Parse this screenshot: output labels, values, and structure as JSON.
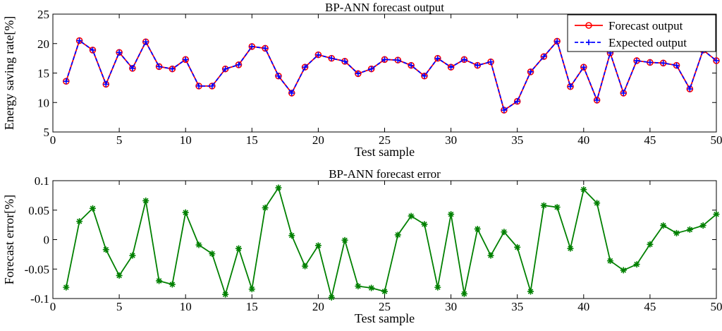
{
  "chart_data": [
    {
      "type": "line",
      "title": "BP-ANN forecast output",
      "xlabel": "Test sample",
      "ylabel": "Energy saving rate[%]",
      "xlim": [
        0,
        50
      ],
      "ylim": [
        5,
        25
      ],
      "xticks": [
        0,
        5,
        10,
        15,
        20,
        25,
        30,
        35,
        40,
        45,
        50
      ],
      "yticks": [
        5,
        10,
        15,
        20,
        25
      ],
      "legend_position": "top-right",
      "x": [
        1,
        2,
        3,
        4,
        5,
        6,
        7,
        8,
        9,
        10,
        11,
        12,
        13,
        14,
        15,
        16,
        17,
        18,
        19,
        20,
        21,
        22,
        23,
        24,
        25,
        26,
        27,
        28,
        29,
        30,
        31,
        32,
        33,
        34,
        35,
        36,
        37,
        38,
        39,
        40,
        41,
        42,
        43,
        44,
        45,
        46,
        47,
        48,
        49,
        50
      ],
      "series": [
        {
          "name": "Forecast output",
          "color": "#ff0000",
          "marker": "circle",
          "values": [
            13.6,
            20.5,
            18.9,
            13.1,
            18.5,
            15.8,
            20.3,
            16.1,
            15.7,
            17.3,
            12.8,
            12.8,
            15.7,
            16.4,
            19.5,
            19.2,
            14.5,
            11.6,
            16.0,
            18.1,
            17.5,
            17.0,
            14.9,
            15.7,
            17.3,
            17.2,
            16.3,
            14.5,
            17.5,
            16.0,
            17.3,
            16.3,
            16.9,
            8.7,
            10.2,
            15.2,
            17.8,
            20.4,
            12.7,
            16.0,
            10.4,
            18.4,
            11.6,
            17.1,
            16.8,
            16.7,
            16.3,
            12.3,
            18.9,
            17.1
          ]
        },
        {
          "name": "Expected output",
          "color": "#0000ff",
          "marker": "plus",
          "values": [
            13.6,
            20.5,
            18.9,
            13.1,
            18.5,
            15.8,
            20.3,
            16.1,
            15.7,
            17.3,
            12.8,
            12.8,
            15.7,
            16.4,
            19.5,
            19.2,
            14.5,
            11.6,
            16.0,
            18.1,
            17.5,
            17.0,
            14.9,
            15.7,
            17.3,
            17.2,
            16.3,
            14.5,
            17.5,
            16.0,
            17.3,
            16.3,
            16.9,
            8.7,
            10.2,
            15.2,
            17.8,
            20.4,
            12.7,
            16.0,
            10.4,
            18.4,
            11.6,
            17.1,
            16.8,
            16.7,
            16.3,
            12.3,
            18.9,
            17.1
          ]
        }
      ]
    },
    {
      "type": "line",
      "title": "BP-ANN forecast error",
      "xlabel": "Test sample",
      "ylabel": "Forecast error[%]",
      "xlim": [
        0,
        50
      ],
      "ylim": [
        -0.1,
        0.1
      ],
      "xticks": [
        0,
        5,
        10,
        15,
        20,
        25,
        30,
        35,
        40,
        45,
        50
      ],
      "yticks": [
        -0.1,
        -0.05,
        0,
        0.05,
        0.1
      ],
      "ytick_labels": [
        "-0.1",
        "-0.05",
        "0",
        "0.05",
        "0.1"
      ],
      "x": [
        1,
        2,
        3,
        4,
        5,
        6,
        7,
        8,
        9,
        10,
        11,
        12,
        13,
        14,
        15,
        16,
        17,
        18,
        19,
        20,
        21,
        22,
        23,
        24,
        25,
        26,
        27,
        28,
        29,
        30,
        31,
        32,
        33,
        34,
        35,
        36,
        37,
        38,
        39,
        40,
        41,
        42,
        43,
        44,
        45,
        46,
        47,
        48,
        49,
        50
      ],
      "series": [
        {
          "name": "Forecast error",
          "color": "#008000",
          "marker": "star",
          "values": [
            -0.081,
            0.031,
            0.053,
            -0.017,
            -0.061,
            -0.027,
            0.066,
            -0.07,
            -0.076,
            0.046,
            -0.009,
            -0.024,
            -0.093,
            -0.015,
            -0.084,
            0.054,
            0.088,
            0.007,
            -0.045,
            -0.01,
            -0.098,
            -0.001,
            -0.079,
            -0.082,
            -0.088,
            0.008,
            0.04,
            0.026,
            -0.081,
            0.043,
            -0.092,
            0.018,
            -0.027,
            0.013,
            -0.013,
            -0.088,
            0.058,
            0.055,
            -0.015,
            0.085,
            0.062,
            -0.036,
            -0.052,
            -0.042,
            -0.008,
            0.024,
            0.011,
            0.017,
            0.024,
            0.043
          ]
        }
      ]
    }
  ]
}
